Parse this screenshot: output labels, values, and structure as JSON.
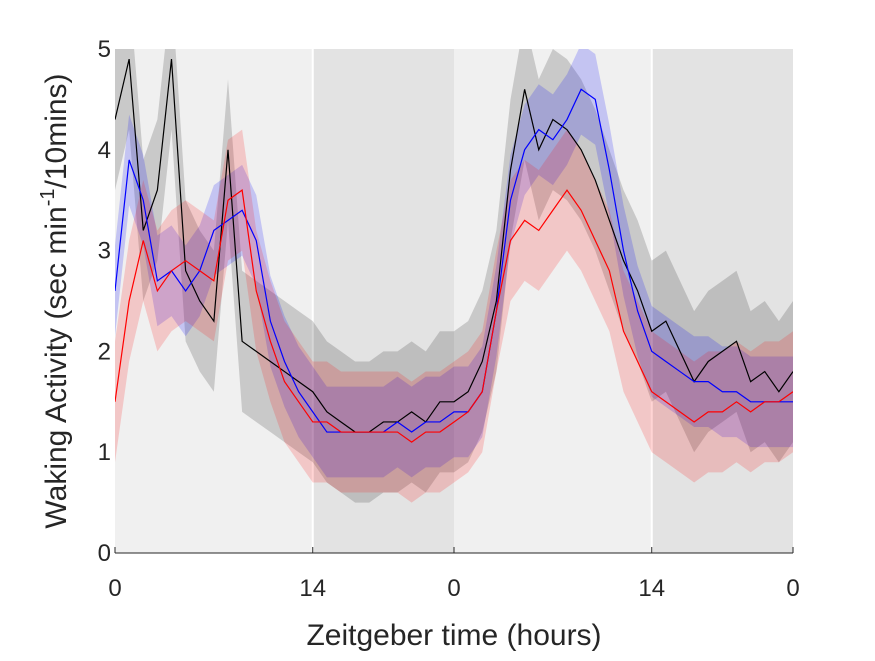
{
  "chart_data": {
    "type": "line",
    "xlabel": "Zeitgeber time (hours)",
    "ylabel_parts": [
      "Waking Activity (sec min",
      "-1",
      "/10mins)"
    ],
    "xlim": [
      0,
      48
    ],
    "ylim": [
      0,
      5
    ],
    "xticks": [
      0,
      14,
      {
        "value": 24,
        "label": "0"
      },
      {
        "value": 38,
        "label": "14"
      },
      {
        "value": 48,
        "label": "0"
      }
    ],
    "yticks": [
      0,
      1,
      2,
      3,
      4,
      5
    ],
    "dark_periods": [
      [
        14,
        24
      ],
      [
        38,
        48
      ]
    ],
    "x": [
      0,
      1,
      2,
      3,
      4,
      5,
      6,
      7,
      8,
      9,
      10,
      11,
      12,
      13,
      14,
      15,
      16,
      17,
      18,
      19,
      20,
      21,
      22,
      23,
      24,
      25,
      26,
      27,
      28,
      29,
      30,
      31,
      32,
      33,
      34,
      35,
      36,
      37,
      38,
      39,
      40,
      41,
      42,
      43,
      44,
      45,
      46,
      47,
      48
    ],
    "series": [
      {
        "color": "#000000",
        "band_color": "rgba(0,0,0,0.16)",
        "error": 0.7,
        "values": [
          4.3,
          4.9,
          3.2,
          3.6,
          4.9,
          2.8,
          2.5,
          2.3,
          4.0,
          2.1,
          2.0,
          1.9,
          1.8,
          1.7,
          1.6,
          1.4,
          1.3,
          1.2,
          1.2,
          1.3,
          1.3,
          1.4,
          1.3,
          1.5,
          1.5,
          1.6,
          1.9,
          2.5,
          3.8,
          4.6,
          4.0,
          4.3,
          4.2,
          4.0,
          3.7,
          3.3,
          2.9,
          2.6,
          2.2,
          2.3,
          2.0,
          1.7,
          1.9,
          2.0,
          2.1,
          1.7,
          1.8,
          1.6,
          1.8
        ]
      },
      {
        "color": "#0000ff",
        "band_color": "rgba(0,0,255,0.18)",
        "error": 0.45,
        "values": [
          2.6,
          3.9,
          3.5,
          2.7,
          2.8,
          2.6,
          2.8,
          3.2,
          3.3,
          3.4,
          3.1,
          2.3,
          1.9,
          1.6,
          1.4,
          1.2,
          1.2,
          1.2,
          1.2,
          1.2,
          1.3,
          1.2,
          1.3,
          1.3,
          1.4,
          1.4,
          1.6,
          2.4,
          3.5,
          4.0,
          4.2,
          4.1,
          4.3,
          4.6,
          4.5,
          3.8,
          3.0,
          2.4,
          2.0,
          1.9,
          1.8,
          1.7,
          1.7,
          1.6,
          1.6,
          1.5,
          1.5,
          1.5,
          1.5
        ]
      },
      {
        "color": "#ff0000",
        "band_color": "rgba(255,0,0,0.17)",
        "error": 0.6,
        "values": [
          1.5,
          2.5,
          3.1,
          2.6,
          2.8,
          2.9,
          2.8,
          2.7,
          3.5,
          3.6,
          2.6,
          2.1,
          1.7,
          1.5,
          1.3,
          1.3,
          1.2,
          1.2,
          1.2,
          1.2,
          1.2,
          1.1,
          1.2,
          1.2,
          1.3,
          1.4,
          1.6,
          2.4,
          3.1,
          3.3,
          3.2,
          3.4,
          3.6,
          3.4,
          3.1,
          2.8,
          2.2,
          1.9,
          1.6,
          1.5,
          1.4,
          1.3,
          1.4,
          1.4,
          1.5,
          1.4,
          1.5,
          1.5,
          1.6
        ]
      }
    ]
  }
}
